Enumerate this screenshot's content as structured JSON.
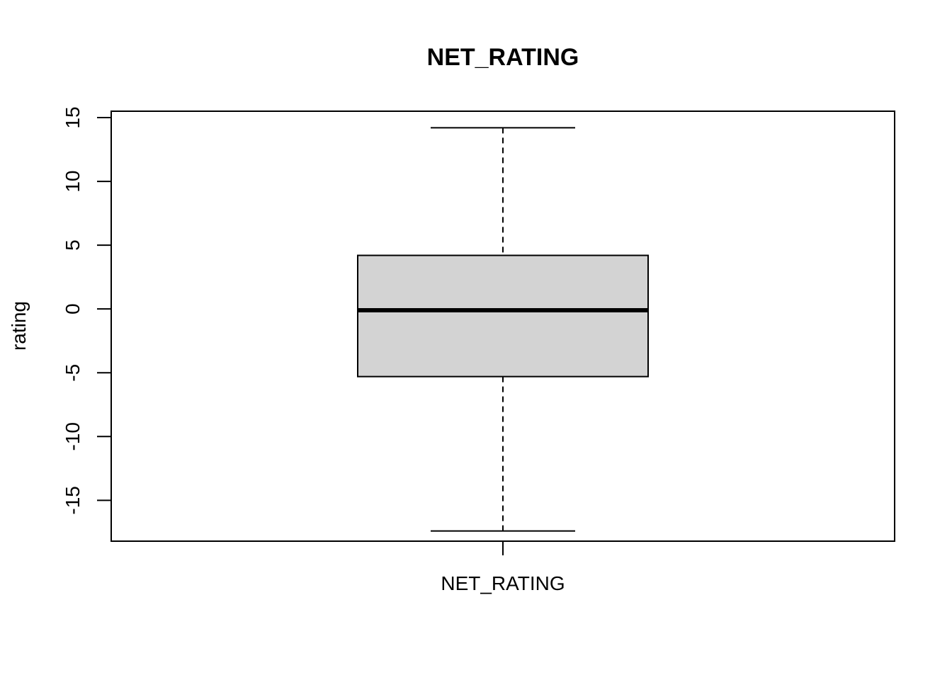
{
  "chart_data": {
    "type": "boxplot",
    "title": "NET_RATING",
    "xlabel": "",
    "ylabel": "rating",
    "ylim": [
      -18.2,
      15.5
    ],
    "yticks": [
      -15,
      -10,
      -5,
      0,
      5,
      10,
      15
    ],
    "grid": false,
    "categories": [
      "NET_RATING"
    ],
    "boxes": [
      {
        "category": "NET_RATING",
        "whisker_low": -17.4,
        "q1": -5.3,
        "median": -0.1,
        "q3": 4.2,
        "whisker_high": 14.2
      }
    ],
    "colors": {
      "box_fill": "#d3d3d3",
      "stroke": "#000000"
    }
  }
}
